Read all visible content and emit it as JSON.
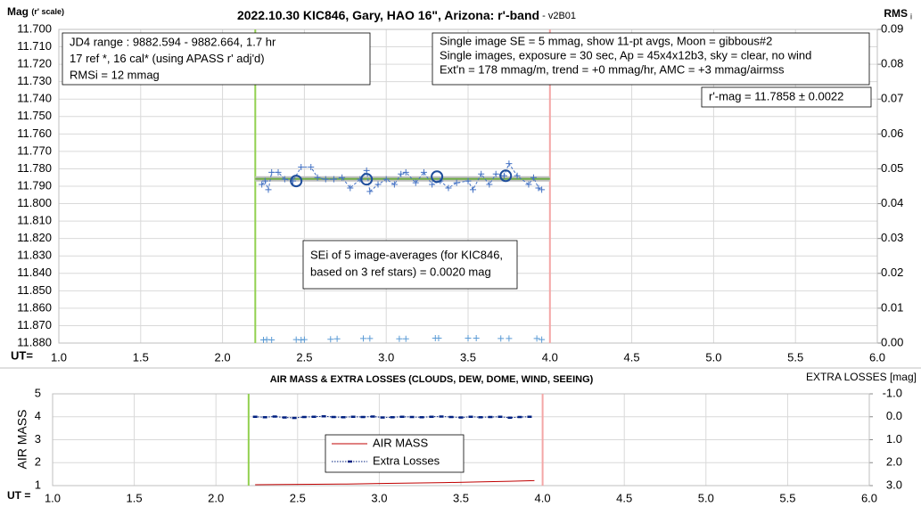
{
  "chart_data": [
    {
      "type": "scatter",
      "title": "2022.10.30 KIC846, Gary, HAO 16\", Arizona: r'-band",
      "subtitle": " - v2B01",
      "y_label": "Mag",
      "y_label_note": "(r' scale)",
      "y2_label": "RMS",
      "y2_label_note": "i",
      "x_label": "UT=",
      "xlim": [
        1.0,
        6.0
      ],
      "xticks": [
        {
          "value": 1.0,
          "label": "1.0"
        },
        {
          "value": 1.5,
          "label": "1.5"
        },
        {
          "value": 2.0,
          "label": "2.0"
        },
        {
          "value": 2.5,
          "label": "2.5"
        },
        {
          "value": 3.0,
          "label": "3.0"
        },
        {
          "value": 3.5,
          "label": "3.5"
        },
        {
          "value": 4.0,
          "label": "4.0"
        },
        {
          "value": 4.5,
          "label": "4.5"
        },
        {
          "value": 5.0,
          "label": "5.0"
        },
        {
          "value": 5.5,
          "label": "5.5"
        },
        {
          "value": 6.0,
          "label": "6.0"
        }
      ],
      "ylim": [
        11.88,
        11.7
      ],
      "yticks": [
        {
          "value": 11.7,
          "label": "11.700"
        },
        {
          "value": 11.71,
          "label": "11.710"
        },
        {
          "value": 11.72,
          "label": "11.720"
        },
        {
          "value": 11.73,
          "label": "11.730"
        },
        {
          "value": 11.74,
          "label": "11.740"
        },
        {
          "value": 11.75,
          "label": "11.750"
        },
        {
          "value": 11.76,
          "label": "11.760"
        },
        {
          "value": 11.77,
          "label": "11.770"
        },
        {
          "value": 11.78,
          "label": "11.780"
        },
        {
          "value": 11.79,
          "label": "11.790"
        },
        {
          "value": 11.8,
          "label": "11.800"
        },
        {
          "value": 11.81,
          "label": "11.810"
        },
        {
          "value": 11.82,
          "label": "11.820"
        },
        {
          "value": 11.83,
          "label": "11.830"
        },
        {
          "value": 11.84,
          "label": "11.840"
        },
        {
          "value": 11.85,
          "label": "11.850"
        },
        {
          "value": 11.86,
          "label": "11.860"
        },
        {
          "value": 11.87,
          "label": "11.870"
        },
        {
          "value": 11.88,
          "label": "11.880"
        }
      ],
      "y2lim": [
        0,
        0.09
      ],
      "y2ticks": [
        {
          "value": 0,
          "label": "0.00"
        },
        {
          "value": 0.01,
          "label": "0.01"
        },
        {
          "value": 0.02,
          "label": "0.02"
        },
        {
          "value": 0.03,
          "label": "0.03"
        },
        {
          "value": 0.04,
          "label": "0.04"
        },
        {
          "value": 0.05,
          "label": "0.05"
        },
        {
          "value": 0.06,
          "label": "0.06"
        },
        {
          "value": 0.07,
          "label": "0.07"
        },
        {
          "value": 0.08,
          "label": "0.08"
        },
        {
          "value": 0.09,
          "label": "0.09"
        }
      ],
      "grid": true,
      "markers": [
        {
          "x": 2.2,
          "color": "#92d050"
        },
        {
          "x": 4.0,
          "color": "#f4a6a6"
        }
      ],
      "series": [
        {
          "x": [
            2.2,
            4.0
          ],
          "values": [
            11.7858,
            11.7858
          ],
          "color": "#70ad47",
          "halo_color": "#bfbfbf",
          "marker": "none",
          "line_style": "solid"
        },
        {
          "x": [
            2.24,
            2.26,
            2.28,
            2.3,
            2.34,
            2.38,
            2.43,
            2.48,
            2.54,
            2.58,
            2.63,
            2.68,
            2.73,
            2.78,
            2.84,
            2.88,
            2.9,
            2.95,
            3.0,
            3.05,
            3.09,
            3.12,
            3.18,
            3.23,
            3.28,
            3.33,
            3.38,
            3.43,
            3.5,
            3.53,
            3.58,
            3.63,
            3.67,
            3.72,
            3.75,
            3.8,
            3.87,
            3.9,
            3.93,
            3.95
          ],
          "values": [
            11.789,
            11.787,
            11.792,
            11.782,
            11.782,
            11.786,
            11.787,
            11.779,
            11.779,
            11.785,
            11.786,
            11.786,
            11.785,
            11.791,
            11.786,
            11.781,
            11.793,
            11.789,
            11.786,
            11.789,
            11.783,
            11.782,
            11.788,
            11.782,
            11.789,
            11.787,
            11.791,
            11.788,
            11.787,
            11.792,
            11.783,
            11.789,
            11.783,
            11.784,
            11.777,
            11.784,
            11.789,
            11.785,
            11.791,
            11.792
          ],
          "color": "#4472c4",
          "marker": "plus",
          "line_style": "dashed"
        },
        {
          "x": [
            2.45,
            2.88,
            3.31,
            3.73
          ],
          "values": [
            11.787,
            11.786,
            11.7845,
            11.784
          ],
          "color": "#1f4e9c",
          "marker": "circle",
          "line_style": "none"
        },
        {
          "x": [
            2.25,
            2.27,
            2.3,
            2.45,
            2.48,
            2.5,
            2.66,
            2.7,
            2.86,
            2.9,
            3.08,
            3.12,
            3.3,
            3.32,
            3.5,
            3.55,
            3.7,
            3.75,
            3.92,
            3.95
          ],
          "values": [
            0.0009,
            0.001,
            0.0009,
            0.001,
            0.0009,
            0.001,
            0.0011,
            0.0012,
            0.0013,
            0.0013,
            0.0012,
            0.0012,
            0.0014,
            0.0014,
            0.0014,
            0.0014,
            0.0013,
            0.0013,
            0.0013,
            0.001
          ],
          "color": "#5b9bd5",
          "marker": "plus",
          "line_style": "none",
          "axis": "y2"
        }
      ],
      "annotations": [
        {
          "lines": [
            "JD4 range : 9882.594 - 9882.664,  1.7  hr",
            "17 ref *, 16 cal* (using APASS r' adj'd)",
            "RMSi = 12 mmag"
          ]
        },
        {
          "lines": [
            "Single image SE = 5 mmag, show  11-pt avgs, Moon = gibbous#2",
            "Single images, exposure = 30 sec, Ap = 45x4x12b3, sky = clear, no wind",
            "Ext'n = 178 mmag/m, trend = +0  mmag/hr, AMC = +3 mmag/airmss"
          ]
        },
        {
          "lines": [
            "r'-mag = 11.7858 ± 0.0022"
          ]
        },
        {
          "lines": [
            "SEi of 5 image-averages (for KIC846,",
            "based on 3 ref stars) = 0.0020 mag"
          ]
        }
      ]
    },
    {
      "type": "line",
      "title": "AIR MASS & EXTRA LOSSES (CLOUDS, DEW, DOME, WIND, SEEING)",
      "y_label": "AIR MASS",
      "y2_label": "EXTRA LOSSES [mag]",
      "x_label": "UT =",
      "xlim": [
        1.0,
        6.0
      ],
      "xticks": [
        {
          "value": 1.0,
          "label": "1.0"
        },
        {
          "value": 1.5,
          "label": "1.5"
        },
        {
          "value": 2.0,
          "label": "2.0"
        },
        {
          "value": 2.5,
          "label": "2.5"
        },
        {
          "value": 3.0,
          "label": "3.0"
        },
        {
          "value": 3.5,
          "label": "3.5"
        },
        {
          "value": 4.0,
          "label": "4.0"
        },
        {
          "value": 4.5,
          "label": "4.5"
        },
        {
          "value": 5.0,
          "label": "5.0"
        },
        {
          "value": 5.5,
          "label": "5.5"
        },
        {
          "value": 6.0,
          "label": "6.0"
        }
      ],
      "ylim": [
        1,
        5
      ],
      "yticks": [
        1,
        2,
        3,
        4,
        5
      ],
      "y2lim": [
        3.0,
        -1.0
      ],
      "y2ticks": [
        {
          "value": -1.0,
          "label": "-1.0"
        },
        {
          "value": 0.0,
          "label": "0.0"
        },
        {
          "value": 1.0,
          "label": "1.0"
        },
        {
          "value": 2.0,
          "label": "2.0"
        },
        {
          "value": 3.0,
          "label": "3.0"
        }
      ],
      "grid": true,
      "legend": "center",
      "markers": [
        {
          "x": 2.2,
          "color": "#92d050"
        },
        {
          "x": 4.0,
          "color": "#f4a6a6"
        }
      ],
      "series": [
        {
          "name": "AIR MASS",
          "color": "#c00000",
          "marker": "none",
          "line_style": "solid",
          "x": [
            2.24,
            2.4,
            2.6,
            2.8,
            3.0,
            3.2,
            3.4,
            3.6,
            3.8,
            3.95
          ],
          "values": [
            1.04,
            1.05,
            1.06,
            1.07,
            1.09,
            1.11,
            1.13,
            1.16,
            1.19,
            1.22
          ]
        },
        {
          "name": "Extra Losses",
          "color": "#002080",
          "marker": "dash",
          "line_style": "dotted",
          "axis": "y2",
          "x": [
            2.24,
            2.3,
            2.36,
            2.42,
            2.48,
            2.54,
            2.6,
            2.66,
            2.72,
            2.78,
            2.84,
            2.9,
            2.96,
            3.02,
            3.08,
            3.14,
            3.2,
            3.26,
            3.32,
            3.38,
            3.44,
            3.5,
            3.56,
            3.62,
            3.68,
            3.74,
            3.8,
            3.86,
            3.92
          ],
          "values": [
            0.0,
            0.02,
            -0.01,
            0.03,
            0.05,
            0.01,
            0.0,
            -0.02,
            0.01,
            0.02,
            0.0,
            0.01,
            -0.01,
            0.03,
            0.02,
            0.0,
            0.01,
            0.02,
            0.0,
            -0.01,
            0.01,
            0.03,
            0.0,
            0.02,
            0.01,
            0.0,
            0.04,
            0.01,
            0.0
          ]
        }
      ]
    }
  ]
}
